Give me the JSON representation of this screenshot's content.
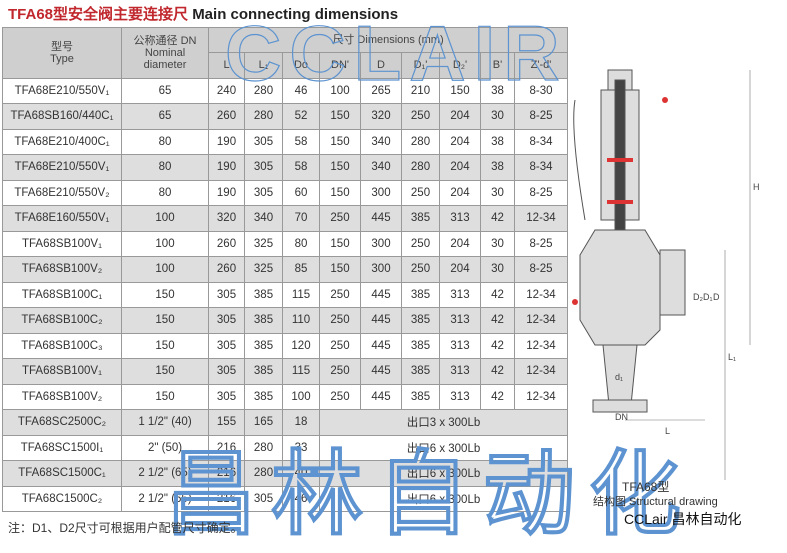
{
  "title": {
    "cn": "TFA68型安全阀主要连接尺",
    "en": "Main connecting dimensions"
  },
  "headers": {
    "type_cn": "型号",
    "type_en": "Type",
    "dn_cn": "公称通径 DN",
    "dn_en1": "Nominal",
    "dn_en2": "diameter",
    "dims": "尺寸 Dimensions (mm)",
    "cols": [
      "L",
      "L₁",
      "Do",
      "DN'",
      "D",
      "D₁'",
      "D₂'",
      "B'",
      "Z'-d'"
    ]
  },
  "rows": [
    [
      "TFA68E210/550V₁",
      "65",
      "240",
      "280",
      "46",
      "100",
      "265",
      "210",
      "150",
      "38",
      "8-30"
    ],
    [
      "TFA68SB160/440C₁",
      "65",
      "260",
      "280",
      "52",
      "150",
      "320",
      "250",
      "204",
      "30",
      "8-25"
    ],
    [
      "TFA68E210/400C₁",
      "80",
      "190",
      "305",
      "58",
      "150",
      "340",
      "280",
      "204",
      "38",
      "8-34"
    ],
    [
      "TFA68E210/550V₁",
      "80",
      "190",
      "305",
      "58",
      "150",
      "340",
      "280",
      "204",
      "38",
      "8-34"
    ],
    [
      "TFA68E210/550V₂",
      "80",
      "190",
      "305",
      "60",
      "150",
      "300",
      "250",
      "204",
      "30",
      "8-25"
    ],
    [
      "TFA68E160/550V₁",
      "100",
      "320",
      "340",
      "70",
      "250",
      "445",
      "385",
      "313",
      "42",
      "12-34"
    ],
    [
      "TFA68SB100V₁",
      "100",
      "260",
      "325",
      "80",
      "150",
      "300",
      "250",
      "204",
      "30",
      "8-25"
    ],
    [
      "TFA68SB100V₂",
      "100",
      "260",
      "325",
      "85",
      "150",
      "300",
      "250",
      "204",
      "30",
      "8-25"
    ],
    [
      "TFA68SB100C₁",
      "150",
      "305",
      "385",
      "115",
      "250",
      "445",
      "385",
      "313",
      "42",
      "12-34"
    ],
    [
      "TFA68SB100C₂",
      "150",
      "305",
      "385",
      "110",
      "250",
      "445",
      "385",
      "313",
      "42",
      "12-34"
    ],
    [
      "TFA68SB100C₃",
      "150",
      "305",
      "385",
      "120",
      "250",
      "445",
      "385",
      "313",
      "42",
      "12-34"
    ],
    [
      "TFA68SB100V₁",
      "150",
      "305",
      "385",
      "115",
      "250",
      "445",
      "385",
      "313",
      "42",
      "12-34"
    ],
    [
      "TFA68SB100V₂",
      "150",
      "305",
      "385",
      "100",
      "250",
      "445",
      "385",
      "313",
      "42",
      "12-34"
    ]
  ],
  "rows_special": [
    [
      "TFA68SC2500C₂",
      "1 1/2\" (40)",
      "155",
      "165",
      "18",
      "出口3 x 300Lb"
    ],
    [
      "TFA68SC1500I₁",
      "2\" (50)",
      "216",
      "280",
      "33",
      "出口6 x 300Lb"
    ],
    [
      "TFA68SC1500C₁",
      "2 1/2\" (65)",
      "216",
      "280",
      "40",
      "出口6 x 300Lb"
    ],
    [
      "TFA68C1500C₂",
      "2 1/2\" (65)",
      "216",
      "305",
      "46",
      "出口6 x 300Lb"
    ]
  ],
  "note": "注：D1、D2尺寸可根据用户配管尺寸确定。",
  "diagram": {
    "caption1": "TFA68型",
    "caption2": "结构图 Structural drawing",
    "labels": [
      "H",
      "L",
      "L₁",
      "D",
      "D₁",
      "D₂",
      "DN",
      "d₁"
    ]
  },
  "brand": "CCLair 昌林自动化",
  "watermarks": [
    "CCLAIR",
    "昌林自动化"
  ]
}
